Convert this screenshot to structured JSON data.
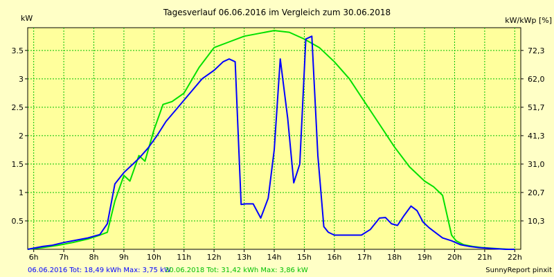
{
  "chart_data": {
    "type": "line",
    "title": "Tagesverlauf 06.06.2016 im Vergleich zum 30.06.2018",
    "ylabel_left": "kW",
    "ylabel_right": "kW/kWp [%]",
    "xlim": [
      5.8,
      22.2
    ],
    "ylim": [
      0,
      3.9
    ],
    "grid": true,
    "x_ticks": [
      "6h",
      "7h",
      "8h",
      "9h",
      "10h",
      "11h",
      "12h",
      "13h",
      "14h",
      "15h",
      "16h",
      "17h",
      "18h",
      "19h",
      "20h",
      "21h",
      "22h"
    ],
    "y_ticks_left": [
      "0.5",
      "1",
      "1.5",
      "2",
      "2.5",
      "3",
      "3.5"
    ],
    "y_ticks_right": [
      "10,3",
      "20,7",
      "31,0",
      "41,3",
      "51,7",
      "62,0",
      "72,3"
    ],
    "colors": {
      "plot_bg": "#ffff9c",
      "grid": "#00c000",
      "series_2016": "#0000ff",
      "series_2018": "#00e000"
    },
    "series": [
      {
        "name": "06.06.2016",
        "x": [
          5.8,
          6.3,
          6.6,
          7.0,
          7.4,
          7.8,
          8.2,
          8.45,
          8.7,
          9.0,
          9.2,
          9.5,
          9.8,
          10.1,
          10.4,
          10.8,
          11.2,
          11.6,
          12.0,
          12.3,
          12.5,
          12.7,
          12.9,
          13.05,
          13.3,
          13.55,
          13.8,
          14.0,
          14.2,
          14.45,
          14.65,
          14.85,
          15.05,
          15.25,
          15.45,
          15.65,
          15.8,
          16.0,
          16.3,
          16.6,
          16.9,
          17.2,
          17.5,
          17.7,
          17.9,
          18.1,
          18.3,
          18.55,
          18.75,
          18.95,
          19.15,
          19.35,
          19.6,
          19.9,
          20.2,
          20.5,
          20.8,
          21.1,
          21.4,
          21.7,
          22.0
        ],
        "values": [
          0.0,
          0.05,
          0.07,
          0.12,
          0.16,
          0.2,
          0.26,
          0.45,
          1.15,
          1.35,
          1.45,
          1.6,
          1.78,
          2.0,
          2.25,
          2.5,
          2.75,
          3.0,
          3.15,
          3.3,
          3.35,
          3.3,
          0.79,
          0.8,
          0.8,
          0.55,
          0.9,
          1.75,
          3.35,
          2.3,
          1.17,
          1.5,
          3.7,
          3.75,
          1.65,
          0.4,
          0.3,
          0.25,
          0.25,
          0.25,
          0.25,
          0.35,
          0.55,
          0.56,
          0.45,
          0.42,
          0.58,
          0.76,
          0.68,
          0.48,
          0.38,
          0.3,
          0.2,
          0.15,
          0.08,
          0.05,
          0.03,
          0.02,
          0.01,
          0.0,
          0.0
        ]
      },
      {
        "name": "30.06.2018",
        "x": [
          5.8,
          6.3,
          6.8,
          7.3,
          7.8,
          8.2,
          8.45,
          8.7,
          9.0,
          9.2,
          9.5,
          9.7,
          10.0,
          10.3,
          10.6,
          11.0,
          11.5,
          12.0,
          12.5,
          13.0,
          13.5,
          14.0,
          14.5,
          15.0,
          15.5,
          16.0,
          16.5,
          17.0,
          17.5,
          18.0,
          18.5,
          19.0,
          19.3,
          19.6,
          19.75,
          19.9,
          20.05,
          20.3,
          20.6,
          20.9,
          21.2,
          21.5,
          21.8,
          22.0
        ],
        "values": [
          0.0,
          0.03,
          0.07,
          0.12,
          0.18,
          0.25,
          0.3,
          0.85,
          1.3,
          1.2,
          1.65,
          1.55,
          2.1,
          2.55,
          2.6,
          2.75,
          3.2,
          3.55,
          3.65,
          3.75,
          3.8,
          3.85,
          3.82,
          3.7,
          3.55,
          3.3,
          3.0,
          2.6,
          2.2,
          1.8,
          1.45,
          1.2,
          1.1,
          0.95,
          0.6,
          0.25,
          0.15,
          0.08,
          0.05,
          0.03,
          0.02,
          0.01,
          0.0,
          0.0
        ]
      }
    ]
  },
  "footer": {
    "series1_label": "06.06.2016 Tot: 18,49 kWh Max: 3,75 kW",
    "series2_label": "30.06.2018 Tot: 31,42 kWh Max: 3,86 kW",
    "credit": "SunnyReport pinxit"
  }
}
